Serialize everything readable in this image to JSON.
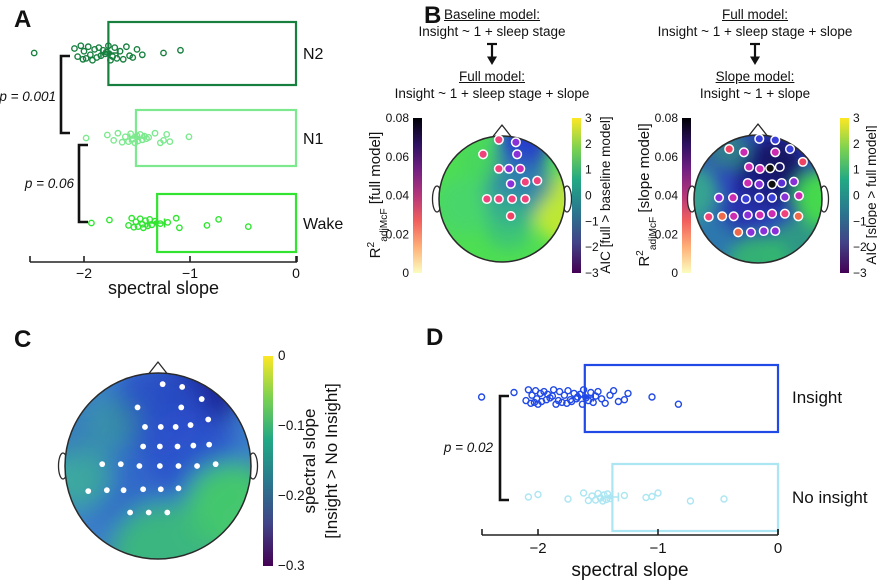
{
  "figure": {
    "background": "#ffffff"
  },
  "panels": {
    "a": {
      "label": "A"
    },
    "b": {
      "label": "B",
      "left": {
        "top_title": "Baseline model:",
        "top_formula": "Insight ~ 1 + sleep stage",
        "bottom_title": "Full model:",
        "bottom_formula": "Insight ~ 1 + sleep stage + slope"
      },
      "right": {
        "top_title": "Full model:",
        "top_formula": "Insight ~ 1 + sleep stage + slope",
        "bottom_title": "Slope model:",
        "bottom_formula": "Insight ~ 1 + slope"
      }
    },
    "c": {
      "label": "C"
    },
    "d": {
      "label": "D"
    }
  },
  "chart_data": {
    "colormaps": {
      "r2_top_down": [
        "#000004",
        "#2c115f",
        "#721f81",
        "#b5367a",
        "#f1605d",
        "#feb078",
        "#fcfdbf"
      ],
      "viridis_top_down": [
        "#fde725",
        "#7ad151",
        "#22a884",
        "#2a788e",
        "#414487",
        "#440154"
      ]
    },
    "dot_colors": {
      "pink": "#f0437c",
      "magenta": "#cb2cb2",
      "purple": "#8a30d8",
      "blue": "#3a3fd9",
      "navy": "#1b1566",
      "black": "#101010",
      "red": "#f04363",
      "orange": "#ef6a4b",
      "indigo": "#5c2fd4"
    },
    "panel_a": {
      "type": "box-scatter",
      "xlabel": "spectral slope",
      "xticks": [
        [
          -2,
          "−2"
        ],
        [
          -1,
          "−1"
        ],
        [
          0,
          "0"
        ]
      ],
      "xlim": [
        -2.52,
        0.05
      ],
      "box_right": 0,
      "pvalues": [
        "p = 0.001",
        "p = 0.06"
      ],
      "groups": [
        {
          "label": "N2",
          "color": "#17803f",
          "box_left": -1.77,
          "mean": -1.76,
          "err": 0.08,
          "points": [
            -2.47,
            -2.09,
            -2.06,
            -2.03,
            -2.01,
            -2.0,
            -1.98,
            -1.96,
            -1.94,
            -1.92,
            -1.9,
            -1.88,
            -1.86,
            -1.84,
            -1.82,
            -1.8,
            -1.79,
            -1.77,
            -1.75,
            -1.73,
            -1.71,
            -1.69,
            -1.66,
            -1.63,
            -1.6,
            -1.57,
            -1.54,
            -1.5,
            -1.45,
            -1.25,
            -1.09
          ]
        },
        {
          "label": "N1",
          "color": "#7ce98e",
          "box_left": -1.51,
          "mean": -1.5,
          "err": 0.07,
          "points": [
            -1.98,
            -1.78,
            -1.72,
            -1.68,
            -1.64,
            -1.61,
            -1.58,
            -1.56,
            -1.54,
            -1.52,
            -1.5,
            -1.49,
            -1.47,
            -1.45,
            -1.43,
            -1.41,
            -1.39,
            -1.33,
            -1.28,
            -1.25,
            -1.22,
            -1.19,
            -1.01
          ]
        },
        {
          "label": "Wake",
          "color": "#30e430",
          "box_left": -1.31,
          "mean": -1.32,
          "err": 0.08,
          "points": [
            -1.93,
            -1.76,
            -1.58,
            -1.55,
            -1.53,
            -1.51,
            -1.49,
            -1.47,
            -1.45,
            -1.44,
            -1.42,
            -1.4,
            -1.38,
            -1.36,
            -1.33,
            -1.28,
            -1.21,
            -1.13,
            -1.1,
            -0.84,
            -0.73,
            -0.45
          ]
        }
      ]
    },
    "panel_d": {
      "type": "box-scatter",
      "xlabel": "spectral slope",
      "xticks": [
        [
          -2,
          "−2"
        ],
        [
          -1,
          "−1"
        ],
        [
          0,
          "0"
        ]
      ],
      "xlim": [
        -2.52,
        0.05
      ],
      "box_right": 0,
      "pvalues": [
        "p = 0.02"
      ],
      "groups": [
        {
          "label": "Insight",
          "color": "#2149e6",
          "box_left": -1.61,
          "mean": -1.6,
          "err": 0.06,
          "points": [
            -2.47,
            -2.2,
            -2.1,
            -2.08,
            -2.06,
            -2.05,
            -2.03,
            -2.02,
            -2.01,
            -2.0,
            -1.98,
            -1.97,
            -1.95,
            -1.93,
            -1.92,
            -1.9,
            -1.88,
            -1.87,
            -1.85,
            -1.83,
            -1.82,
            -1.8,
            -1.78,
            -1.76,
            -1.75,
            -1.73,
            -1.72,
            -1.7,
            -1.68,
            -1.67,
            -1.65,
            -1.63,
            -1.62,
            -1.6,
            -1.58,
            -1.56,
            -1.54,
            -1.52,
            -1.5,
            -1.47,
            -1.44,
            -1.4,
            -1.37,
            -1.33,
            -1.28,
            -1.25,
            -1.05,
            -0.83
          ]
        },
        {
          "label": "No insight",
          "color": "#abe6f2",
          "box_left": -1.38,
          "mean": -1.4,
          "err": 0.07,
          "points": [
            -2.08,
            -2.0,
            -1.75,
            -1.62,
            -1.58,
            -1.55,
            -1.52,
            -1.5,
            -1.48,
            -1.46,
            -1.45,
            -1.43,
            -1.42,
            -1.4,
            -1.28,
            -1.1,
            -1.05,
            -1.0,
            -0.73,
            -0.45
          ]
        }
      ]
    },
    "panel_b_left": {
      "type": "topomap",
      "r2_bar": {
        "ticks": [
          "0.08",
          "0.06",
          "0.04",
          "0.02",
          "0"
        ],
        "label": {
          "main": "R",
          "sup": "2",
          "sub": "adjMcF",
          "rest": " [full model]"
        }
      },
      "aic_bar": {
        "ticks": [
          "3",
          "2",
          "1",
          "0",
          "−1",
          "−2",
          "−3"
        ],
        "label": "AIC [full > baseline model]"
      },
      "field": {
        "base": "#4ede52",
        "blobs": [
          [
            1.02,
            0.15,
            0.55,
            "#c3e832",
            0.95
          ],
          [
            0.33,
            -0.85,
            0.4,
            "#2336cf",
            1
          ],
          [
            0.25,
            -0.45,
            0.42,
            "#2a55c0",
            0.85
          ],
          [
            0.15,
            -0.05,
            0.48,
            "#2f8fa8",
            0.8
          ],
          [
            0.1,
            0.42,
            0.38,
            "#38b889",
            0.65
          ],
          [
            -0.6,
            0.1,
            0.45,
            "#45cf7d",
            0.55
          ],
          [
            -0.3,
            -0.6,
            0.35,
            "#3fd068",
            0.5
          ],
          [
            0.55,
            -0.25,
            0.3,
            "#2f7fb0",
            0.6
          ]
        ]
      },
      "electrodes": [
        [
          -0.05,
          -0.94,
          "pink"
        ],
        [
          0.22,
          -0.9,
          "purple"
        ],
        [
          -0.3,
          -0.71,
          "pink"
        ],
        [
          0.24,
          -0.71,
          "purple"
        ],
        [
          -0.05,
          -0.48,
          "pink"
        ],
        [
          0.11,
          -0.48,
          "purple"
        ],
        [
          0.29,
          -0.48,
          "magenta"
        ],
        [
          0.14,
          -0.24,
          "purple"
        ],
        [
          0.37,
          -0.27,
          "pink"
        ],
        [
          0.56,
          -0.29,
          "pink"
        ],
        [
          -0.24,
          0,
          "pink"
        ],
        [
          -0.05,
          0,
          "pink"
        ],
        [
          0.16,
          0,
          "pink"
        ],
        [
          0.37,
          0,
          "pink"
        ],
        [
          0.14,
          0.27,
          "red"
        ]
      ]
    },
    "panel_b_right": {
      "type": "topomap",
      "r2_bar": {
        "ticks": [
          "0.08",
          "0.06",
          "0.04",
          "0.02",
          "0"
        ],
        "label": {
          "main": "R",
          "sup": "2",
          "sub": "adjMcF",
          "rest": " [slope model]"
        }
      },
      "aic_bar": {
        "ticks": [
          "3",
          "2",
          "1",
          "0",
          "−1",
          "−2",
          "−3"
        ],
        "label": "AIC [slope > full model]"
      },
      "field": {
        "base": "#2b3cc4",
        "blobs": [
          [
            0.2,
            -0.4,
            0.55,
            "#1a1877",
            0.9
          ],
          [
            0.35,
            -0.62,
            0.33,
            "#16125e",
            0.85
          ],
          [
            1.05,
            0,
            0.48,
            "#44d94d",
            1
          ],
          [
            0.6,
            0.75,
            0.45,
            "#2fae75",
            0.8
          ],
          [
            0,
            1.05,
            0.5,
            "#33bd6b",
            0.9
          ],
          [
            -0.75,
            0.65,
            0.4,
            "#2f9e9e",
            0.6
          ],
          [
            -1.05,
            -0.1,
            0.45,
            "#38bd85",
            0.8
          ],
          [
            -0.5,
            -0.8,
            0.35,
            "#34a96a",
            0.6
          ],
          [
            -0.2,
            0.15,
            0.4,
            "#232e9e",
            0.6
          ]
        ]
      },
      "electrodes": [
        [
          0.02,
          -0.94,
          "blue"
        ],
        [
          0.27,
          -0.92,
          "blue"
        ],
        [
          -0.45,
          -0.78,
          "red"
        ],
        [
          -0.22,
          -0.73,
          "magenta"
        ],
        [
          0.27,
          -0.73,
          "magenta"
        ],
        [
          0.5,
          -0.78,
          "blue"
        ],
        [
          -0.14,
          -0.5,
          "magenta"
        ],
        [
          0.03,
          -0.47,
          "magenta"
        ],
        [
          0.19,
          -0.48,
          "black"
        ],
        [
          0.34,
          -0.5,
          "navy"
        ],
        [
          0.7,
          -0.58,
          "red"
        ],
        [
          -0.16,
          -0.25,
          "magenta"
        ],
        [
          0.02,
          -0.23,
          "purple"
        ],
        [
          0.22,
          -0.23,
          "black"
        ],
        [
          0.37,
          -0.25,
          "indigo"
        ],
        [
          0.56,
          -0.27,
          "purple"
        ],
        [
          -0.61,
          -0.02,
          "purple"
        ],
        [
          -0.39,
          -0.02,
          "magenta"
        ],
        [
          -0.19,
          0,
          "blue"
        ],
        [
          0.02,
          -0.02,
          "blue"
        ],
        [
          0.22,
          -0.02,
          "blue"
        ],
        [
          0.42,
          -0.03,
          "purple"
        ],
        [
          0.64,
          -0.05,
          "magenta"
        ],
        [
          -0.77,
          0.28,
          "pink"
        ],
        [
          -0.56,
          0.27,
          "orange"
        ],
        [
          -0.38,
          0.27,
          "magenta"
        ],
        [
          -0.16,
          0.25,
          "purple"
        ],
        [
          0.03,
          0.25,
          "magenta"
        ],
        [
          0.22,
          0.23,
          "magenta"
        ],
        [
          0.42,
          0.23,
          "pink"
        ],
        [
          0.63,
          0.27,
          "orange"
        ],
        [
          -0.31,
          0.52,
          "orange"
        ],
        [
          -0.11,
          0.52,
          "purple"
        ],
        [
          0.09,
          0.5,
          "purple"
        ],
        [
          0.27,
          0.5,
          "purple"
        ]
      ]
    },
    "panel_c": {
      "type": "topomap",
      "bar": {
        "ticks": [
          "0",
          "−0.1",
          "−0.2",
          "−0.3"
        ],
        "label_line1": "spectral slope",
        "label_line2": "[Insight > No Insight]"
      },
      "field": {
        "base": "#3b7ec9",
        "blobs": [
          [
            0.45,
            -0.8,
            0.42,
            "#1b2195",
            1
          ],
          [
            0,
            -0.62,
            0.5,
            "#2a4cc5",
            0.9
          ],
          [
            0.35,
            -0.12,
            0.5,
            "#2a50cc",
            0.85
          ],
          [
            -0.42,
            0.2,
            0.45,
            "#2f5cc9",
            0.6
          ],
          [
            0.78,
            0.45,
            0.5,
            "#43cb68",
            0.95
          ],
          [
            0.05,
            0.95,
            0.55,
            "#3cbd78",
            0.9
          ],
          [
            -0.85,
            0.12,
            0.35,
            "#3fbd8d",
            0.7
          ],
          [
            -0.5,
            -0.45,
            0.3,
            "#3aa98c",
            0.5
          ],
          [
            -0.95,
            -0.35,
            0.3,
            "#357fb5",
            0.6
          ]
        ]
      },
      "electrodes": [
        [
          0.05,
          -0.88
        ],
        [
          0.26,
          -0.85
        ],
        [
          -0.22,
          -0.63
        ],
        [
          0.25,
          -0.63
        ],
        [
          0.47,
          -0.72
        ],
        [
          -0.14,
          -0.42
        ],
        [
          0.03,
          -0.42
        ],
        [
          0.19,
          -0.42
        ],
        [
          0.35,
          -0.44
        ],
        [
          0.54,
          -0.5
        ],
        [
          -0.16,
          -0.21
        ],
        [
          0.02,
          -0.21
        ],
        [
          0.21,
          -0.21
        ],
        [
          0.38,
          -0.22
        ],
        [
          0.55,
          -0.23
        ],
        [
          -0.6,
          -0.02
        ],
        [
          -0.4,
          -0.02
        ],
        [
          -0.2,
          0
        ],
        [
          0.02,
          0
        ],
        [
          0.22,
          0
        ],
        [
          0.42,
          0
        ],
        [
          0.62,
          -0.02
        ],
        [
          -0.75,
          0.27
        ],
        [
          -0.55,
          0.26
        ],
        [
          -0.37,
          0.26
        ],
        [
          -0.16,
          0.25
        ],
        [
          0.03,
          0.25
        ],
        [
          0.22,
          0.24
        ],
        [
          -0.3,
          0.5
        ],
        [
          -0.1,
          0.5
        ],
        [
          0.1,
          0.5
        ]
      ]
    }
  }
}
